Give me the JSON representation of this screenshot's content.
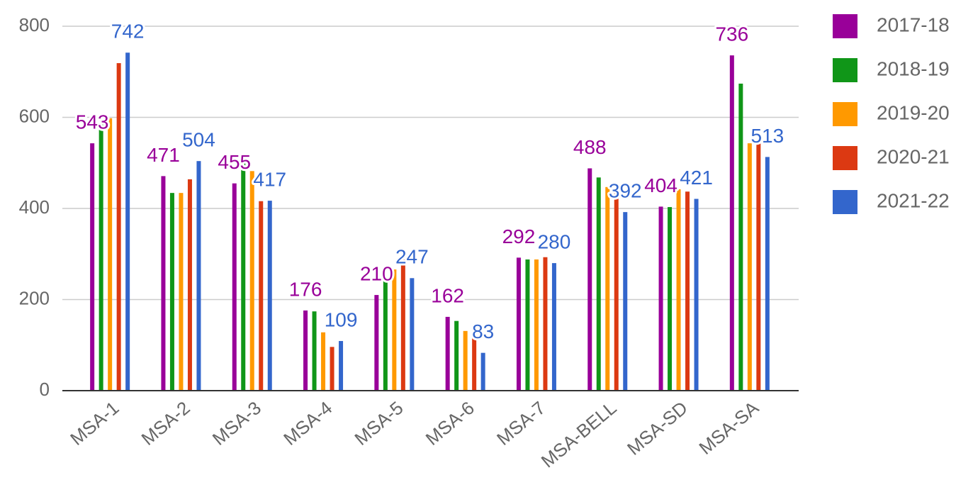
{
  "chart_data": {
    "type": "bar",
    "categories": [
      "MSA-1",
      "MSA-2",
      "MSA-3",
      "MSA-4",
      "MSA-5",
      "MSA-6",
      "MSA-7",
      "MSA-BELL",
      "MSA-SD",
      "MSA-SA"
    ],
    "series": [
      {
        "name": "2017-18",
        "color": "#990099",
        "show_labels": true,
        "values": [
          543,
          471,
          455,
          176,
          210,
          162,
          292,
          488,
          404,
          736
        ]
      },
      {
        "name": "2018-19",
        "color": "#109618",
        "values": [
          587,
          434,
          507,
          174,
          244,
          153,
          288,
          468,
          403,
          674
        ]
      },
      {
        "name": "2019-20",
        "color": "#ff9900",
        "values": [
          598,
          434,
          482,
          128,
          266,
          131,
          288,
          447,
          442,
          543
        ]
      },
      {
        "name": "2020-21",
        "color": "#dc3912",
        "values": [
          719,
          464,
          416,
          96,
          288,
          139,
          293,
          437,
          437,
          543
        ]
      },
      {
        "name": "2021-22",
        "color": "#3366cc",
        "show_labels": true,
        "values": [
          742,
          504,
          417,
          109,
          247,
          83,
          280,
          392,
          421,
          513
        ]
      }
    ],
    "ylim": [
      0,
      800
    ],
    "yticks": [
      0,
      200,
      400,
      600,
      800
    ],
    "grid": true,
    "legend": "right"
  }
}
